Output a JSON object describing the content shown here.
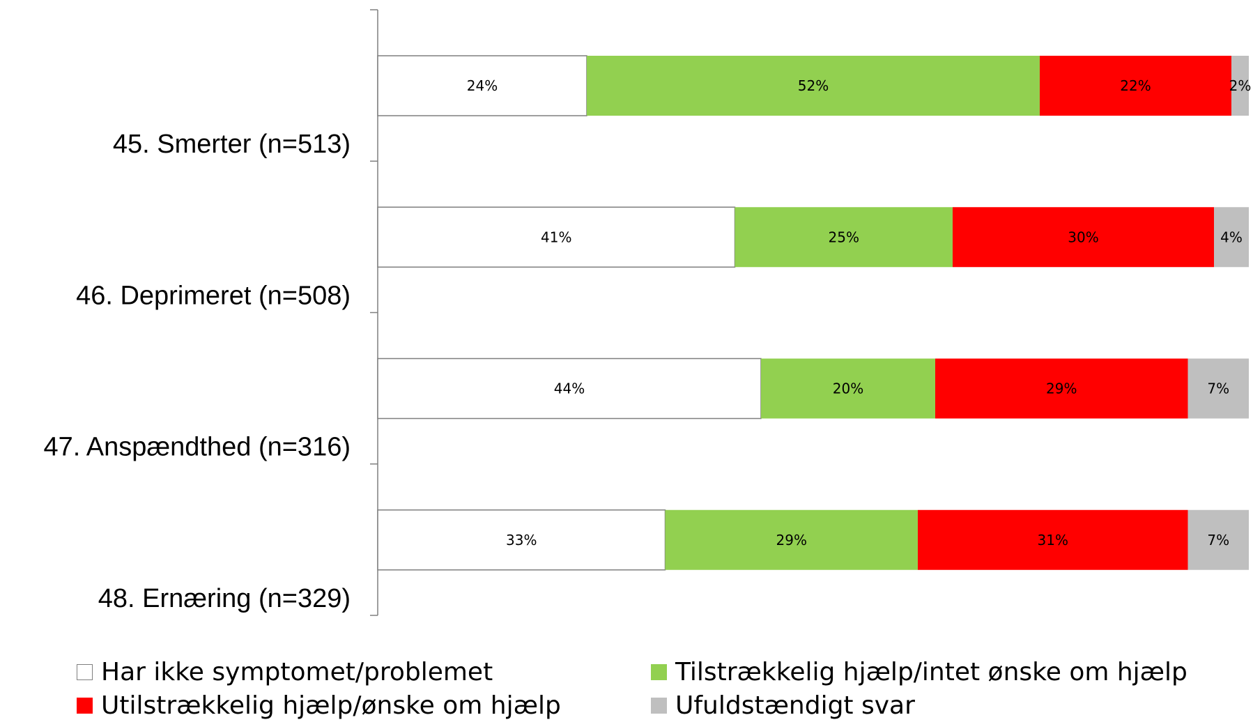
{
  "chart_data": {
    "type": "bar",
    "orientation": "horizontal",
    "stacked": true,
    "categories": [
      "45. Smerter (n=513)",
      "46. Deprimeret (n=508)",
      "47. Anspændthed (n=316)",
      "48. Ernæring (n=329)"
    ],
    "series": [
      {
        "name": "Har ikke symptomet/problemet",
        "color": "#ffffff",
        "values": [
          24,
          41,
          44,
          33
        ],
        "labels": [
          "24%",
          "41%",
          "44%",
          "33%"
        ]
      },
      {
        "name": "Tilstrækkelig hjælp/intet ønske om hjælp",
        "color": "#92d050",
        "values": [
          52,
          25,
          20,
          29
        ],
        "labels": [
          "52%",
          "25%",
          "20%",
          "29%"
        ]
      },
      {
        "name": "Utilstrækkelig hjælp/ønske om hjælp",
        "color": "#ff0000",
        "values": [
          22,
          30,
          29,
          31
        ],
        "labels": [
          "22%",
          "30%",
          "29%",
          "31%"
        ]
      },
      {
        "name": "Ufuldstændigt svar",
        "color": "#bfbfbf",
        "values": [
          2,
          4,
          7,
          7
        ],
        "labels": [
          "2%",
          "4%",
          "7%",
          "7%"
        ]
      }
    ],
    "xlim": [
      0,
      100
    ],
    "grid": false,
    "legend_position": "bottom"
  }
}
